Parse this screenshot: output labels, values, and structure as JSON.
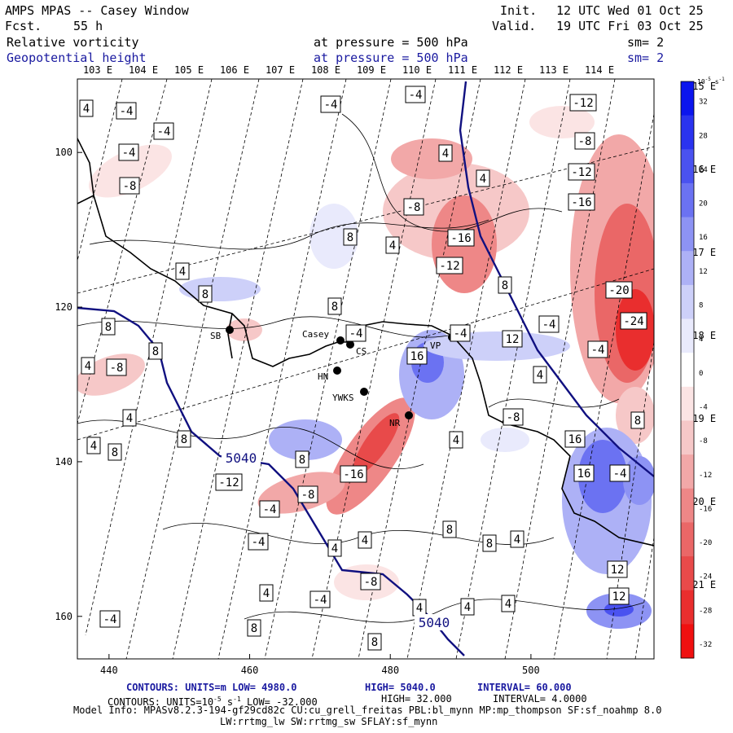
{
  "header": {
    "title": "AMPS MPAS -- Casey Window",
    "forecast_label": "Fcst.",
    "forecast_value": "55 h",
    "init_label": "Init.",
    "init_value": "12 UTC Wed 01 Oct 25",
    "valid_label": "Valid.",
    "valid_value": "19 UTC Fri 03 Oct 25",
    "field1_name": "Relative vorticity",
    "field1_level": "at pressure =  500 hPa",
    "field1_sm": "sm= 2",
    "field2_name": "Geopotential height",
    "field2_level": "at pressure =  500 hPa",
    "field2_sm": "sm= 2"
  },
  "footer": {
    "line1_left": "CONTOURS:  UNITS=m  LOW=  4980.0",
    "line1_mid": "HIGH=  5040.0",
    "line1_right": "INTERVAL=   60.000",
    "line2_left": "CONTOURS:  UNITS=10",
    "line2_exp": "-5",
    "line2_unit": " s",
    "line2_exp2": "-1",
    "line2_rest": "  LOW= -32.000",
    "line2_mid": "HIGH=  32.000",
    "line2_right": "INTERVAL=   4.0000",
    "model_info_1": "Model Info: MPASv8.2.3-194-gf29cd82c CU:cu_grell_freitas PBL:bl_mynn MP:mp_thompson SF:sf_noahmp 8.0",
    "model_info_2": "LW:rrtmg_lw SW:rrtmg_sw SFLAY:sf_mynn"
  },
  "colors": {
    "height_contour": "#101080",
    "coast": "#000000",
    "neg_strong": "#e8302f",
    "pos_strong": "#2a33d8"
  },
  "chart_data": {
    "type": "heatmap",
    "title": "AMPS MPAS -- Casey Window",
    "variable": "Relative vorticity (500 hPa) with geopotential height contours",
    "x_grid_ticks": [
      "440",
      "460",
      "480",
      "500"
    ],
    "y_grid_ticks": [
      "100",
      "120",
      "140",
      "160"
    ],
    "x_grid_values": [
      440,
      460,
      480,
      500
    ],
    "y_grid_values": [
      100,
      120,
      140,
      160
    ],
    "xlim": [
      435.5,
      517.5
    ],
    "ylim": [
      90.5,
      165.5
    ],
    "top_lon_labels": [
      "103 E",
      "104 E",
      "105 E",
      "106 E",
      "107 E",
      "108 E",
      "109 E",
      "110 E",
      "111 E",
      "112 E",
      "113 E",
      "114 E"
    ],
    "right_lon_labels": [
      "115 E",
      "116 E",
      "117 E",
      "118 E",
      "119 E",
      "120 E",
      "121 E"
    ],
    "colorbar": {
      "unit_label": "10",
      "unit_exp": "-5",
      "unit_tail": "s",
      "unit_exp2": "-1",
      "ticks": [
        "32",
        "28",
        "24",
        "20",
        "16",
        "12",
        "8",
        "4",
        "0",
        "-4",
        "-8",
        "-12",
        "-16",
        "-20",
        "-24",
        "-28",
        "-32"
      ],
      "colors": [
        "#0b15ee",
        "#2a33ef",
        "#4a52f0",
        "#6b72f2",
        "#8d93f4",
        "#adb1f6",
        "#cdd0f9",
        "#e9eafc",
        "#ffffff",
        "#fbe4e4",
        "#f6c8c8",
        "#f2a8a8",
        "#ee8787",
        "#ea6767",
        "#e84a4a",
        "#e92e2e",
        "#f01010"
      ]
    },
    "height_contours": {
      "units": "m",
      "low": 4980.0,
      "high": 5040.0,
      "interval": 60.0,
      "labels": [
        "5040",
        "5040"
      ]
    },
    "vorticity_contours": {
      "low": -32.0,
      "high": 32.0,
      "interval": 4.0,
      "labels": [
        "4",
        "-4",
        "-4",
        "-4",
        "-8",
        "-4",
        "-4",
        "-12",
        "4",
        "-8",
        "4",
        "-8",
        "-12",
        "-16",
        "-16",
        "8",
        "4",
        "-12",
        "4",
        "-20",
        "8",
        "8",
        "8",
        "-24",
        "8",
        "-4",
        "-4",
        "12",
        "-4",
        "16",
        "8",
        "-8",
        "4",
        "-4",
        "4",
        "8",
        "-8",
        "4",
        "8",
        "4",
        "8",
        "-16",
        "8",
        "4",
        "16",
        "16",
        "-4",
        "-12",
        "-8",
        "-4",
        "8",
        "4",
        "-4",
        "4",
        "4",
        "8",
        "-8",
        "12",
        "4",
        "-4",
        "12",
        "4",
        "4",
        "4",
        "-4",
        "8",
        "8"
      ]
    },
    "stations": [
      {
        "name": "SB"
      },
      {
        "name": "Casey"
      },
      {
        "name": "CS"
      },
      {
        "name": "HN"
      },
      {
        "name": "YWKS"
      },
      {
        "name": "NR"
      },
      {
        "name": "VP"
      }
    ]
  }
}
